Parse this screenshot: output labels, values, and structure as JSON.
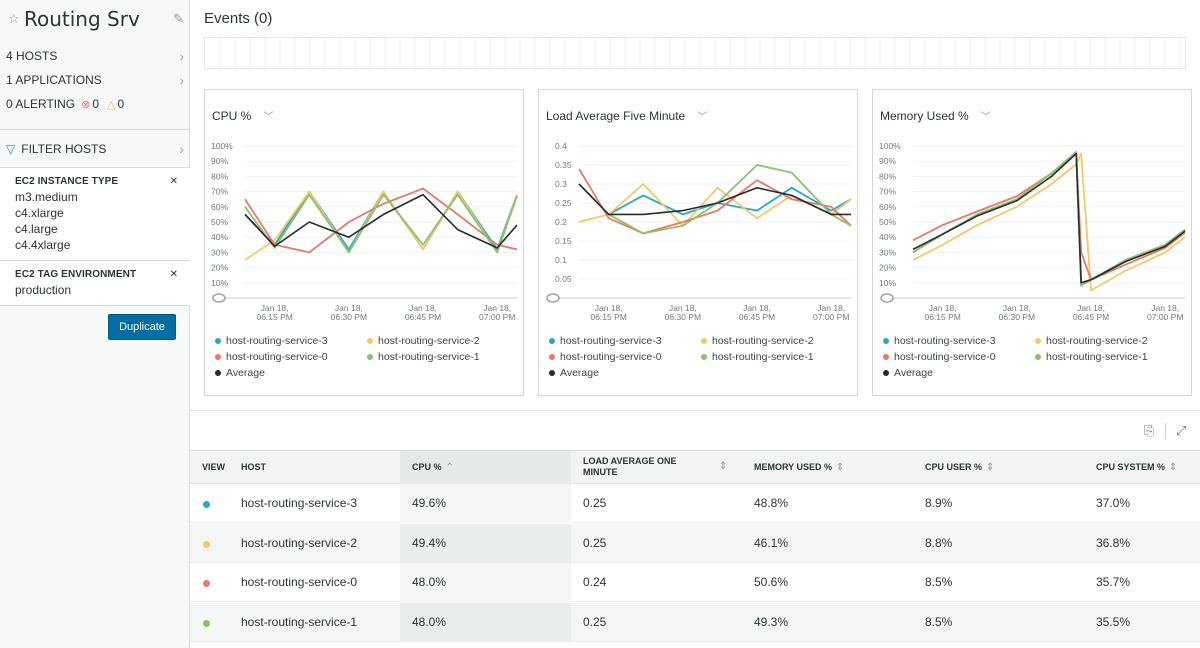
{
  "sidebar": {
    "title": "Routing Srv",
    "hosts": "4 HOSTS",
    "applications": "1 APPLICATIONS",
    "alerting": "0 ALERTING",
    "critical_count": "0",
    "warning_count": "0",
    "filter_label": "FILTER HOSTS",
    "sections": [
      {
        "heading": "EC2 INSTANCE TYPE",
        "items": [
          "m3.medium",
          "c4.xlarge",
          "c4.large",
          "c4.4xlarge"
        ]
      },
      {
        "heading": "EC2 TAG ENVIRONMENT",
        "items": [
          "production"
        ]
      }
    ],
    "duplicate_label": "Duplicate"
  },
  "events": {
    "title": "Events (0)"
  },
  "colors": {
    "host-routing-service-3": "#27a9c4",
    "host-routing-service-2": "#f1c96a",
    "host-routing-service-0": "#e47b6a",
    "host-routing-service-1": "#8cc26f",
    "Average": "#2b2b2b"
  },
  "legend": [
    "host-routing-service-3",
    "host-routing-service-2",
    "host-routing-service-0",
    "host-routing-service-1",
    "Average"
  ],
  "x_ticks": [
    "Jan 18,\n06:15 PM",
    "Jan 18,\n06:30 PM",
    "Jan 18,\n06:45 PM",
    "Jan 18,\n07:00 PM"
  ],
  "chart_data": [
    {
      "type": "line",
      "title": "CPU %",
      "ylim": [
        0,
        100
      ],
      "yticks": [
        "100%",
        "90%",
        "80%",
        "70%",
        "60%",
        "50%",
        "40%",
        "30%",
        "20%",
        "10%"
      ],
      "x": [
        "06:09",
        "06:15",
        "06:22",
        "06:30",
        "06:37",
        "06:45",
        "06:52",
        "07:00",
        "07:04"
      ],
      "series": [
        {
          "name": "host-routing-service-3",
          "values": [
            55,
            35,
            70,
            32,
            70,
            32,
            70,
            32,
            68
          ]
        },
        {
          "name": "host-routing-service-2",
          "values": [
            25,
            38,
            70,
            30,
            70,
            32,
            70,
            30,
            68
          ]
        },
        {
          "name": "host-routing-service-0",
          "values": [
            65,
            35,
            30,
            50,
            62,
            72,
            55,
            35,
            32
          ]
        },
        {
          "name": "host-routing-service-1",
          "values": [
            60,
            33,
            68,
            30,
            68,
            35,
            68,
            30,
            67
          ]
        },
        {
          "name": "Average",
          "values": [
            55,
            34,
            50,
            40,
            55,
            68,
            45,
            33,
            48
          ]
        }
      ]
    },
    {
      "type": "line",
      "title": "Load Average Five Minute",
      "ylim": [
        0,
        0.4
      ],
      "yticks": [
        "0.4",
        "0.35",
        "0.3",
        "0.25",
        "0.2",
        "0.15",
        "0.1",
        "0.05"
      ],
      "x": [
        "06:09",
        "06:15",
        "06:22",
        "06:30",
        "06:37",
        "06:45",
        "06:52",
        "07:00",
        "07:04"
      ],
      "series": [
        {
          "name": "host-routing-service-3",
          "values": [
            0.3,
            0.22,
            0.27,
            0.22,
            0.25,
            0.23,
            0.29,
            0.23,
            0.26
          ]
        },
        {
          "name": "host-routing-service-2",
          "values": [
            0.2,
            0.22,
            0.3,
            0.19,
            0.29,
            0.21,
            0.27,
            0.22,
            0.26
          ]
        },
        {
          "name": "host-routing-service-0",
          "values": [
            0.34,
            0.21,
            0.17,
            0.2,
            0.23,
            0.31,
            0.26,
            0.24,
            0.19
          ]
        },
        {
          "name": "host-routing-service-1",
          "values": [
            0.3,
            0.22,
            0.17,
            0.19,
            0.25,
            0.35,
            0.33,
            0.22,
            0.19
          ]
        },
        {
          "name": "Average",
          "values": [
            0.3,
            0.22,
            0.22,
            0.23,
            0.25,
            0.29,
            0.27,
            0.22,
            0.22
          ]
        }
      ]
    },
    {
      "type": "line",
      "title": "Memory Used %",
      "ylim": [
        0,
        100
      ],
      "yticks": [
        "100%",
        "90%",
        "80%",
        "70%",
        "60%",
        "50%",
        "40%",
        "30%",
        "20%",
        "10%"
      ],
      "x": [
        "06:09",
        "06:15",
        "06:22",
        "06:30",
        "06:37",
        "06:42",
        "06:43",
        "06:45",
        "06:52",
        "07:00",
        "07:04"
      ],
      "series": [
        {
          "name": "host-routing-service-3",
          "values": [
            30,
            42,
            55,
            65,
            82,
            96,
            10,
            12,
            25,
            35,
            45
          ]
        },
        {
          "name": "host-routing-service-2",
          "values": [
            25,
            35,
            48,
            60,
            75,
            88,
            95,
            5,
            18,
            30,
            40
          ]
        },
        {
          "name": "host-routing-service-0",
          "values": [
            38,
            48,
            57,
            67,
            82,
            95,
            30,
            12,
            22,
            33,
            43
          ]
        },
        {
          "name": "host-routing-service-1",
          "values": [
            30,
            42,
            55,
            65,
            82,
            96,
            8,
            12,
            25,
            35,
            45
          ]
        },
        {
          "name": "Average",
          "values": [
            32,
            42,
            54,
            64,
            80,
            95,
            10,
            12,
            24,
            34,
            44
          ]
        }
      ]
    }
  ],
  "table": {
    "headers": [
      "VIEW",
      "HOST",
      "CPU %",
      "LOAD AVERAGE ONE MINUTE",
      "MEMORY USED %",
      "CPU USER %",
      "CPU SYSTEM %"
    ],
    "rows": [
      {
        "host": "host-routing-service-3",
        "cpu": "49.6%",
        "load": "0.25",
        "mem": "48.8%",
        "user": "8.9%",
        "sys": "37.0%"
      },
      {
        "host": "host-routing-service-2",
        "cpu": "49.4%",
        "load": "0.25",
        "mem": "46.1%",
        "user": "8.8%",
        "sys": "36.8%"
      },
      {
        "host": "host-routing-service-0",
        "cpu": "48.0%",
        "load": "0.24",
        "mem": "50.6%",
        "user": "8.5%",
        "sys": "35.7%"
      },
      {
        "host": "host-routing-service-1",
        "cpu": "48.0%",
        "load": "0.25",
        "mem": "49.3%",
        "user": "8.5%",
        "sys": "35.5%"
      }
    ]
  }
}
